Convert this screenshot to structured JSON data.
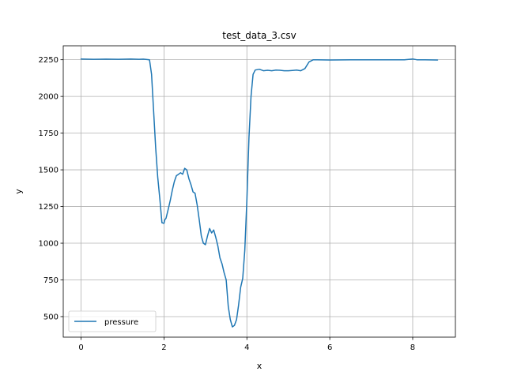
{
  "chart_data": {
    "type": "line",
    "title": "test_data_3.csv",
    "xlabel": "x",
    "ylabel": "y",
    "xlim": [
      -0.43,
      9.03
    ],
    "ylim": [
      360,
      2345
    ],
    "xticks": [
      0,
      2,
      4,
      6,
      8
    ],
    "yticks": [
      500,
      750,
      1000,
      1250,
      1500,
      1750,
      2000,
      2250
    ],
    "grid": true,
    "legend_position": "lower-left",
    "series": [
      {
        "name": "pressure",
        "color": "#1f77b4",
        "x": [
          0.0,
          0.3,
          0.6,
          0.9,
          1.2,
          1.4,
          1.5,
          1.65,
          1.7,
          1.75,
          1.8,
          1.85,
          1.9,
          1.95,
          2.0,
          2.02,
          2.05,
          2.1,
          2.15,
          2.2,
          2.25,
          2.3,
          2.35,
          2.4,
          2.45,
          2.5,
          2.55,
          2.6,
          2.65,
          2.7,
          2.75,
          2.8,
          2.85,
          2.9,
          2.95,
          3.0,
          3.05,
          3.1,
          3.15,
          3.2,
          3.25,
          3.3,
          3.35,
          3.4,
          3.45,
          3.5,
          3.55,
          3.6,
          3.65,
          3.7,
          3.75,
          3.8,
          3.85,
          3.9,
          3.95,
          4.0,
          4.05,
          4.1,
          4.15,
          4.2,
          4.3,
          4.4,
          4.5,
          4.6,
          4.7,
          4.8,
          4.9,
          5.0,
          5.1,
          5.2,
          5.3,
          5.4,
          5.5,
          5.6,
          5.7,
          6.0,
          6.5,
          7.0,
          7.5,
          7.8,
          8.0,
          8.1,
          8.3,
          8.6
        ],
        "y": [
          2255,
          2253,
          2254,
          2253,
          2255,
          2253,
          2254,
          2250,
          2150,
          1900,
          1650,
          1450,
          1300,
          1140,
          1135,
          1160,
          1170,
          1230,
          1290,
          1360,
          1420,
          1460,
          1470,
          1480,
          1470,
          1510,
          1500,
          1440,
          1400,
          1350,
          1340,
          1260,
          1160,
          1050,
          1000,
          990,
          1050,
          1100,
          1070,
          1090,
          1040,
          980,
          900,
          860,
          800,
          750,
          570,
          480,
          430,
          440,
          480,
          580,
          700,
          760,
          950,
          1300,
          1720,
          2000,
          2150,
          2180,
          2185,
          2175,
          2178,
          2175,
          2180,
          2178,
          2175,
          2175,
          2177,
          2180,
          2175,
          2190,
          2235,
          2250,
          2250,
          2248,
          2250,
          2249,
          2250,
          2250,
          2255,
          2250,
          2250,
          2248
        ]
      }
    ]
  }
}
